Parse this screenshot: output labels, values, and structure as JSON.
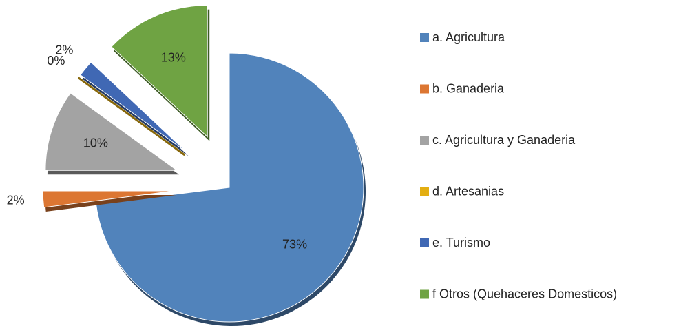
{
  "chart_data": {
    "type": "pie",
    "categories": [
      "a. Agricultura",
      "b. Ganaderia",
      "c. Agricultura y Ganaderia",
      "d. Artesanias",
      "e. Turismo",
      "f Otros (Quehaceres Domesticos)"
    ],
    "values": [
      73,
      2,
      10,
      0,
      2,
      13
    ],
    "value_labels": [
      "73%",
      "2%",
      "10%",
      "0%",
      "2%",
      "13%"
    ],
    "colors": [
      "#5183bb",
      "#dc7632",
      "#a3a3a3",
      "#e3ae12",
      "#4068b4",
      "#6fa343"
    ],
    "legend": "right"
  }
}
